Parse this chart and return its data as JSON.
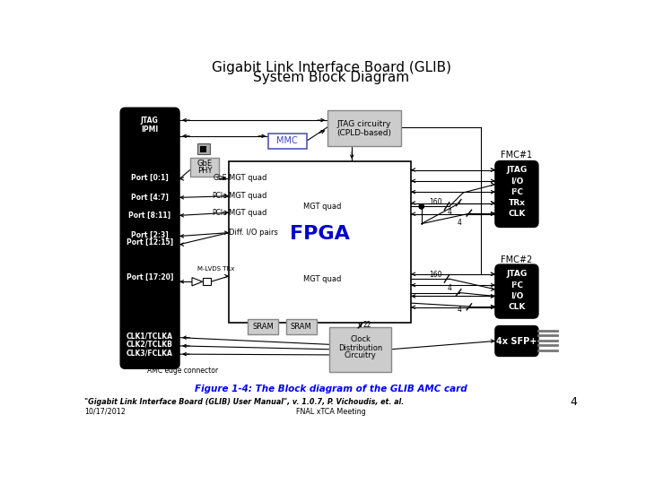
{
  "title_line1": "Gigabit Link Interface Board (GLIB)",
  "title_line2": "System Block Diagram",
  "title_fontsize": 11,
  "bg_color": "#ffffff",
  "footer_left": "\"Gigabit Link Interface Board (GLIB) User Manual\", v. 1.0.7, P. Vichoudis, et. al.",
  "footer_center": "FNAL xTCA Meeting",
  "footer_date": "10/17/2012",
  "footer_page": "4",
  "figure_caption": "Figure 1-4: The Block diagram of the GLIB AMC card",
  "amc_label": "AMC edge connector"
}
